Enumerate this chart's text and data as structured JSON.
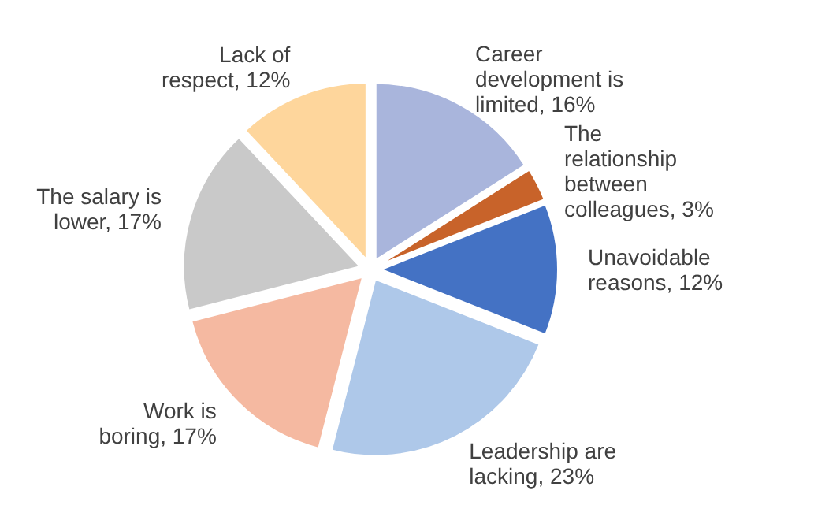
{
  "chart_data": {
    "type": "pie",
    "categories": [
      "Career development is limited",
      "The relationship between colleagues",
      "Unavoidable reasons",
      "Leadership are lacking",
      "Work is boring",
      "The salary is lower",
      "Lack of respect"
    ],
    "values": [
      16,
      3,
      12,
      23,
      17,
      17,
      12
    ],
    "value_labels": [
      "16%",
      "3%",
      "12%",
      "23%",
      "17%",
      "17%",
      "12%"
    ],
    "colors": [
      "#a9b5dc",
      "#c8632a",
      "#4472c4",
      "#aec8e9",
      "#f5b9a1",
      "#c9c9c9",
      "#fed69c"
    ],
    "legend": false
  }
}
